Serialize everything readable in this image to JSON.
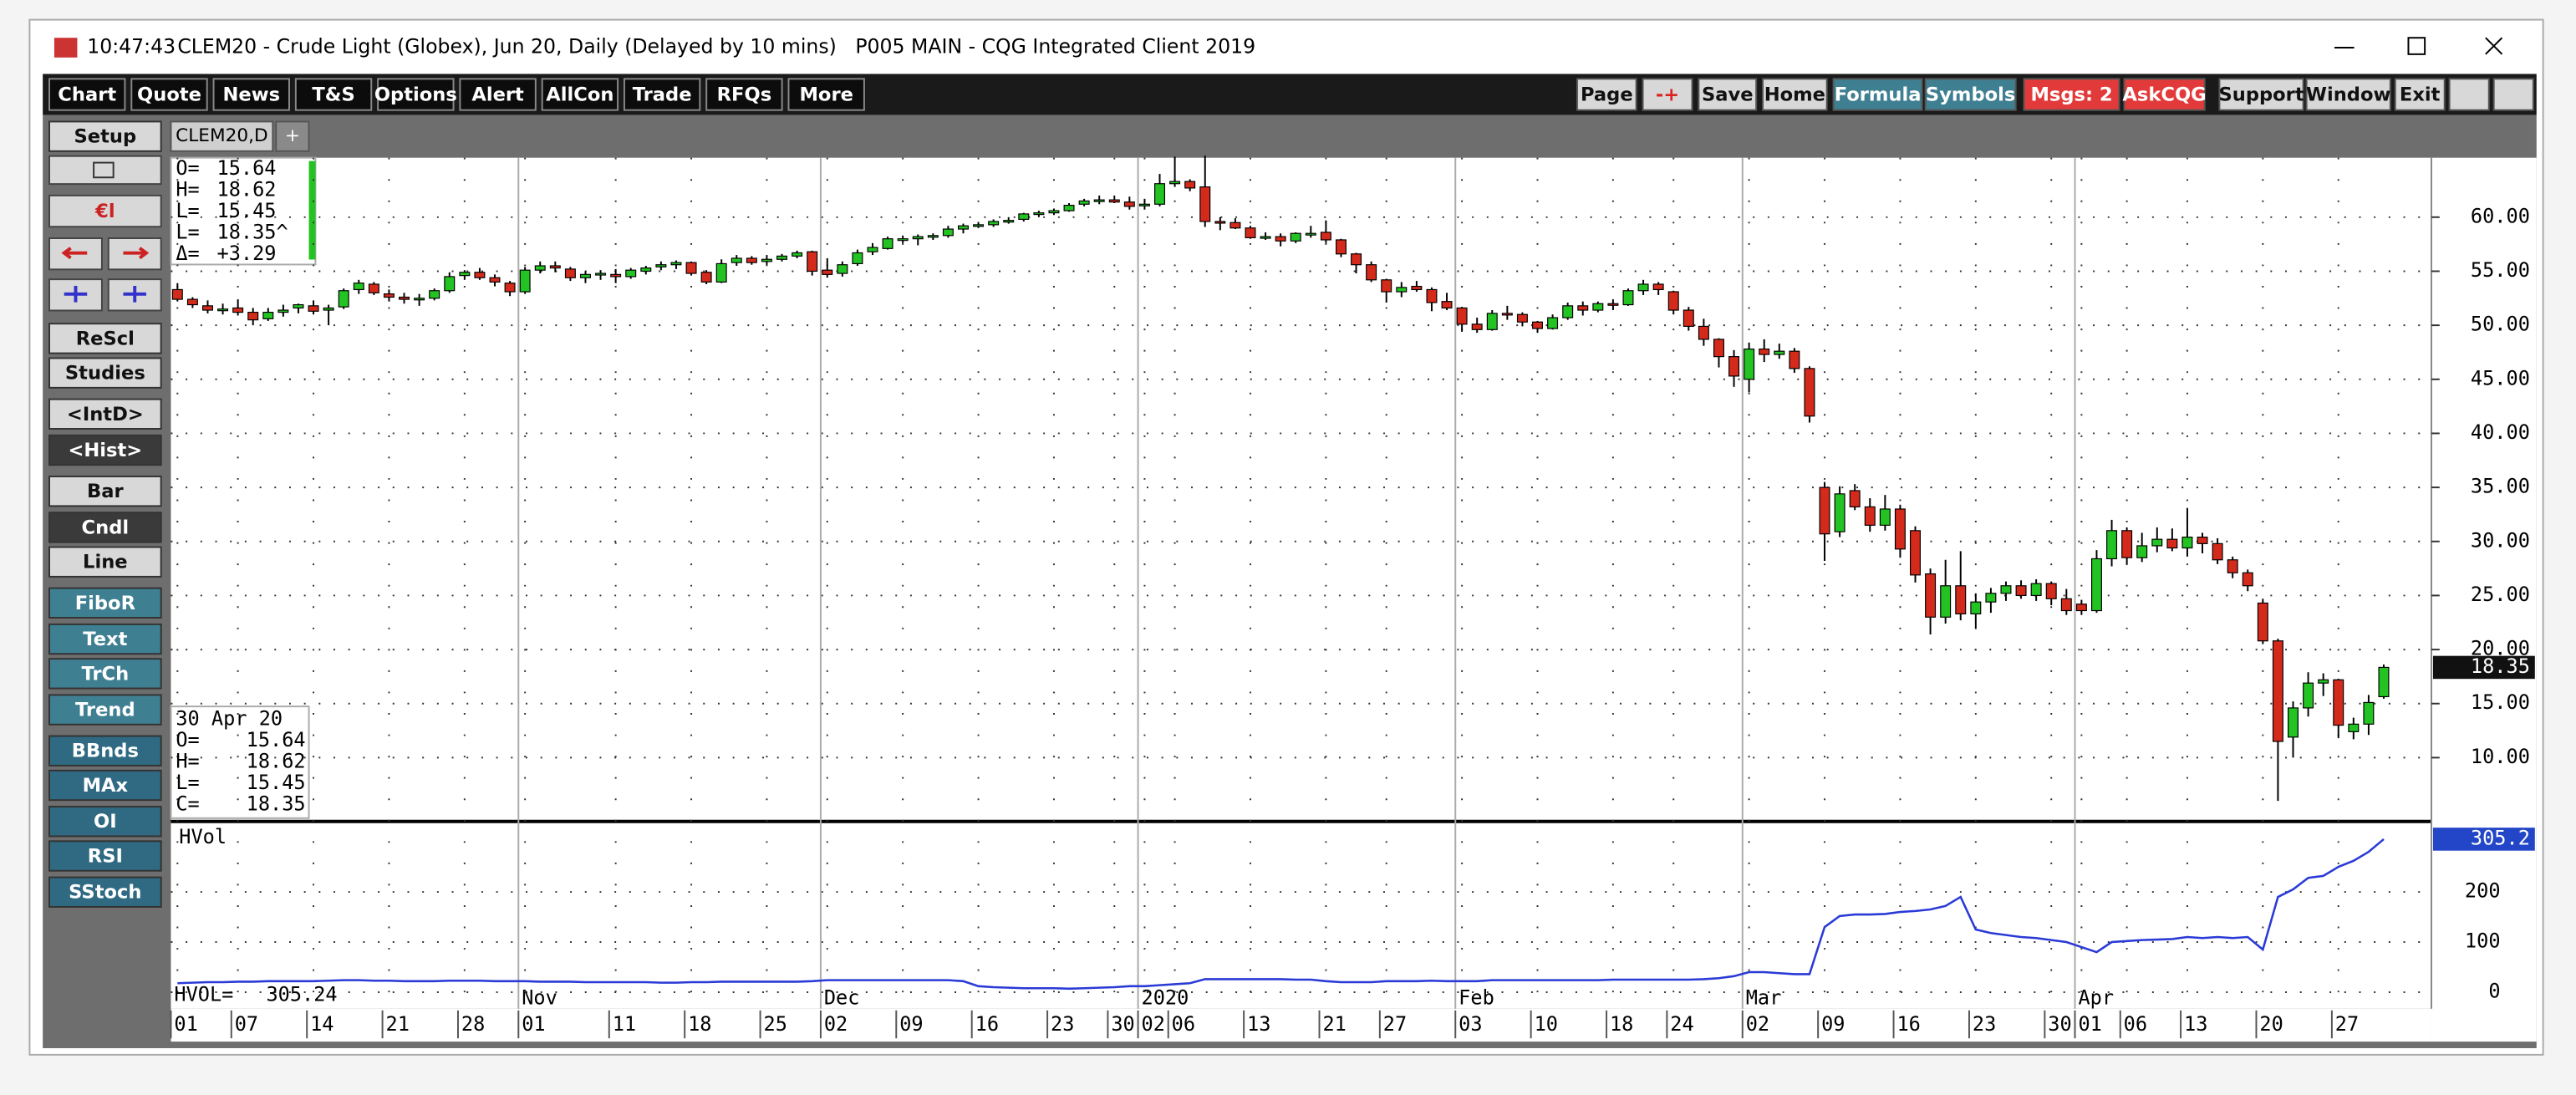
{
  "window": {
    "time": "10:47:43",
    "title": "CLEM20 - Crude Light (Globex), Jun 20, Daily (Delayed by 10 mins)   P005 MAIN - CQG Integrated Client 2019"
  },
  "toolbar_left": [
    "Chart",
    "Quote",
    "News",
    "T&S",
    "Options",
    "Alert",
    "AllCon",
    "Trade",
    "RFQs",
    "More"
  ],
  "toolbar_right": [
    "Page",
    "-+",
    "Save",
    "Home",
    "Formula",
    "Symbols",
    "Msgs: 2",
    "AskCQG",
    "Support",
    "Window",
    "Exit"
  ],
  "sidebar": [
    "Setup",
    "ReScl",
    "Studies",
    "<IntD>",
    "<Hist>",
    "Bar",
    "Cndl",
    "Line",
    "FiboR",
    "Text",
    "TrCh",
    "Trend",
    "BBnds",
    "MAx",
    "OI",
    "RSI",
    "SStoch"
  ],
  "tabs": [
    "CLEM20,D",
    "+"
  ],
  "chart_data": {
    "type": "candlestick",
    "up_color": "#22c322",
    "down_color": "#d42a1c",
    "grid": true,
    "categories": [
      "01",
      null,
      null,
      null,
      "07",
      null,
      null,
      null,
      null,
      "14",
      null,
      null,
      null,
      null,
      "21",
      null,
      null,
      null,
      null,
      "28",
      null,
      null,
      null,
      "01",
      null,
      null,
      null,
      null,
      null,
      "11",
      null,
      null,
      null,
      null,
      "18",
      null,
      null,
      null,
      null,
      "25",
      null,
      null,
      null,
      "02",
      null,
      null,
      null,
      null,
      "09",
      null,
      null,
      null,
      null,
      "16",
      null,
      null,
      null,
      null,
      "23",
      null,
      null,
      null,
      "30",
      null,
      "02",
      null,
      "06",
      null,
      null,
      null,
      null,
      "13",
      null,
      null,
      null,
      null,
      "21",
      null,
      null,
      null,
      "27",
      null,
      null,
      null,
      null,
      "03",
      null,
      null,
      null,
      null,
      "10",
      null,
      null,
      null,
      null,
      "18",
      null,
      null,
      null,
      "24",
      null,
      null,
      null,
      null,
      "02",
      null,
      null,
      null,
      null,
      "09",
      null,
      null,
      null,
      null,
      "16",
      null,
      null,
      null,
      null,
      "23",
      null,
      null,
      null,
      null,
      "30",
      null,
      "01",
      null,
      null,
      "06",
      null,
      null,
      null,
      "13",
      null,
      null,
      null,
      null,
      "20",
      null,
      null,
      null,
      null,
      "27",
      null,
      null,
      null
    ],
    "months": [
      null,
      null,
      null,
      null,
      null,
      null,
      null,
      null,
      null,
      null,
      null,
      null,
      null,
      null,
      null,
      null,
      null,
      null,
      null,
      null,
      null,
      null,
      null,
      "Nov",
      null,
      null,
      null,
      null,
      null,
      null,
      null,
      null,
      null,
      null,
      null,
      null,
      null,
      null,
      null,
      null,
      null,
      null,
      null,
      "Dec",
      null,
      null,
      null,
      null,
      null,
      null,
      null,
      null,
      null,
      null,
      null,
      null,
      null,
      null,
      null,
      null,
      null,
      null,
      null,
      null,
      "2020",
      null,
      null,
      null,
      null,
      null,
      null,
      null,
      null,
      null,
      null,
      null,
      null,
      null,
      null,
      null,
      null,
      null,
      null,
      null,
      null,
      "Feb",
      null,
      null,
      null,
      null,
      null,
      null,
      null,
      null,
      null,
      null,
      null,
      null,
      null,
      null,
      null,
      null,
      null,
      null,
      "Mar",
      null,
      null,
      null,
      null,
      null,
      null,
      null,
      null,
      null,
      null,
      null,
      null,
      null,
      null,
      null,
      null,
      null,
      null,
      null,
      null,
      null,
      "Apr",
      null,
      null,
      null,
      null,
      null,
      null,
      null,
      null,
      null,
      null,
      null,
      null,
      null,
      null,
      null,
      null,
      null,
      null,
      null,
      null
    ],
    "ohlc": [
      [
        53.3,
        53.9,
        52.2,
        52.4
      ],
      [
        52.4,
        52.6,
        51.6,
        51.9
      ],
      [
        51.8,
        52.3,
        51.1,
        51.4
      ],
      [
        51.5,
        52.0,
        51.0,
        51.5
      ],
      [
        51.6,
        52.4,
        50.9,
        51.2
      ],
      [
        51.2,
        51.6,
        50.0,
        50.5
      ],
      [
        50.6,
        51.6,
        50.4,
        51.2
      ],
      [
        51.2,
        51.9,
        50.8,
        51.4
      ],
      [
        51.6,
        52.0,
        51.1,
        51.9
      ],
      [
        51.8,
        52.3,
        51.0,
        51.3
      ],
      [
        51.4,
        51.9,
        50.0,
        51.6
      ],
      [
        51.7,
        53.4,
        51.5,
        53.2
      ],
      [
        53.3,
        54.2,
        52.9,
        53.9
      ],
      [
        53.8,
        54.0,
        52.8,
        53.0
      ],
      [
        52.9,
        53.3,
        52.2,
        52.6
      ],
      [
        52.6,
        53.0,
        52.0,
        52.4
      ],
      [
        52.5,
        52.9,
        51.8,
        52.5
      ],
      [
        52.5,
        53.4,
        52.3,
        53.2
      ],
      [
        53.2,
        54.9,
        53.0,
        54.5
      ],
      [
        54.6,
        55.1,
        54.2,
        54.9
      ],
      [
        54.9,
        55.3,
        54.2,
        54.4
      ],
      [
        54.4,
        54.7,
        53.6,
        54.0
      ],
      [
        53.9,
        54.1,
        52.7,
        53.1
      ],
      [
        53.1,
        55.4,
        52.9,
        55.1
      ],
      [
        55.1,
        55.9,
        54.8,
        55.5
      ],
      [
        55.5,
        55.9,
        54.9,
        55.3
      ],
      [
        55.2,
        55.4,
        54.1,
        54.4
      ],
      [
        54.4,
        55.0,
        53.9,
        54.7
      ],
      [
        54.8,
        55.1,
        54.2,
        54.8
      ],
      [
        54.7,
        55.2,
        53.9,
        54.5
      ],
      [
        54.5,
        55.3,
        54.3,
        55.1
      ],
      [
        55.0,
        55.5,
        54.7,
        55.3
      ],
      [
        55.4,
        55.9,
        55.1,
        55.6
      ],
      [
        55.6,
        56.0,
        55.2,
        55.8
      ],
      [
        55.8,
        55.9,
        54.6,
        54.8
      ],
      [
        54.9,
        55.1,
        53.8,
        54.0
      ],
      [
        54.0,
        56.1,
        53.9,
        55.7
      ],
      [
        55.8,
        56.5,
        55.5,
        56.2
      ],
      [
        56.2,
        56.4,
        55.6,
        55.8
      ],
      [
        55.9,
        56.5,
        55.6,
        56.1
      ],
      [
        56.1,
        56.6,
        55.9,
        56.4
      ],
      [
        56.4,
        56.9,
        56.2,
        56.7
      ],
      [
        56.8,
        56.9,
        54.6,
        55.0
      ],
      [
        55.1,
        56.2,
        54.4,
        54.7
      ],
      [
        54.8,
        55.9,
        54.5,
        55.6
      ],
      [
        55.7,
        57.0,
        55.5,
        56.7
      ],
      [
        56.8,
        57.6,
        56.5,
        57.2
      ],
      [
        57.1,
        58.2,
        57.0,
        58.0
      ],
      [
        58.0,
        58.3,
        57.6,
        58.0
      ],
      [
        58.0,
        58.4,
        57.4,
        58.2
      ],
      [
        58.2,
        58.5,
        57.9,
        58.3
      ],
      [
        58.3,
        59.2,
        58.1,
        58.9
      ],
      [
        58.9,
        59.4,
        58.5,
        59.2
      ],
      [
        59.2,
        59.5,
        59.0,
        59.3
      ],
      [
        59.3,
        59.8,
        59.1,
        59.6
      ],
      [
        59.6,
        60.0,
        59.4,
        59.7
      ],
      [
        59.8,
        60.4,
        59.6,
        60.3
      ],
      [
        60.3,
        60.6,
        60.0,
        60.4
      ],
      [
        60.4,
        60.8,
        60.2,
        60.6
      ],
      [
        60.6,
        61.3,
        60.5,
        61.1
      ],
      [
        61.2,
        61.7,
        61.0,
        61.5
      ],
      [
        61.5,
        62.0,
        61.2,
        61.6
      ],
      [
        61.6,
        62.0,
        61.3,
        61.4
      ],
      [
        61.4,
        61.9,
        60.7,
        61.0
      ],
      [
        61.1,
        61.7,
        60.7,
        61.2
      ],
      [
        61.2,
        64.0,
        61.0,
        63.1
      ],
      [
        63.1,
        65.6,
        62.8,
        63.3
      ],
      [
        63.3,
        63.5,
        62.4,
        62.7
      ],
      [
        62.8,
        65.7,
        59.1,
        59.6
      ],
      [
        59.6,
        60.0,
        58.8,
        59.5
      ],
      [
        59.5,
        59.9,
        58.9,
        59.0
      ],
      [
        59.0,
        59.2,
        58.0,
        58.1
      ],
      [
        58.2,
        58.6,
        57.9,
        58.2
      ],
      [
        58.2,
        58.5,
        57.3,
        57.8
      ],
      [
        57.8,
        58.6,
        57.6,
        58.5
      ],
      [
        58.5,
        59.2,
        58.1,
        58.5
      ],
      [
        58.6,
        59.7,
        57.6,
        57.9
      ],
      [
        57.9,
        58.0,
        56.3,
        56.6
      ],
      [
        56.6,
        56.7,
        54.8,
        55.6
      ],
      [
        55.6,
        55.9,
        54.0,
        54.2
      ],
      [
        54.2,
        54.3,
        52.1,
        53.1
      ],
      [
        53.1,
        54.0,
        52.6,
        53.5
      ],
      [
        53.6,
        54.1,
        53.1,
        53.3
      ],
      [
        53.3,
        53.5,
        51.3,
        52.1
      ],
      [
        52.2,
        53.0,
        51.4,
        51.6
      ],
      [
        51.6,
        51.7,
        49.4,
        50.1
      ],
      [
        50.1,
        50.7,
        49.3,
        49.6
      ],
      [
        49.6,
        51.4,
        49.5,
        51.1
      ],
      [
        51.1,
        51.8,
        50.5,
        51.0
      ],
      [
        51.0,
        51.2,
        49.9,
        50.3
      ],
      [
        50.3,
        50.4,
        49.3,
        49.7
      ],
      [
        49.7,
        51.0,
        49.6,
        50.7
      ],
      [
        50.7,
        52.1,
        50.5,
        51.8
      ],
      [
        51.8,
        52.2,
        50.9,
        51.4
      ],
      [
        51.4,
        52.2,
        51.2,
        52.0
      ],
      [
        52.0,
        52.4,
        51.4,
        51.9
      ],
      [
        51.9,
        53.4,
        51.8,
        53.2
      ],
      [
        53.2,
        54.2,
        52.8,
        53.8
      ],
      [
        53.8,
        54.0,
        52.8,
        53.3
      ],
      [
        53.1,
        53.2,
        51.0,
        51.4
      ],
      [
        51.4,
        51.7,
        49.5,
        49.9
      ],
      [
        49.9,
        50.6,
        48.1,
        48.7
      ],
      [
        48.7,
        48.8,
        46.1,
        47.1
      ],
      [
        47.1,
        47.7,
        44.3,
        45.3
      ],
      [
        45.0,
        48.4,
        43.8,
        47.8
      ],
      [
        47.8,
        48.7,
        46.6,
        47.3
      ],
      [
        47.3,
        48.3,
        46.9,
        47.6
      ],
      [
        47.6,
        47.9,
        45.6,
        46.0
      ],
      [
        46.0,
        46.2,
        41.0,
        41.6
      ],
      [
        35.0,
        35.5,
        28.2,
        30.7
      ],
      [
        30.9,
        35.1,
        30.4,
        34.4
      ],
      [
        34.7,
        35.3,
        32.9,
        33.2
      ],
      [
        33.2,
        34.0,
        30.9,
        31.5
      ],
      [
        31.5,
        34.3,
        31.0,
        33.0
      ],
      [
        33.0,
        33.4,
        28.5,
        29.3
      ],
      [
        31.0,
        31.4,
        26.2,
        26.9
      ],
      [
        27.0,
        27.5,
        21.4,
        23.0
      ],
      [
        23.0,
        28.3,
        22.4,
        25.9
      ],
      [
        25.9,
        29.1,
        22.7,
        23.3
      ],
      [
        23.3,
        25.2,
        22.0,
        24.4
      ],
      [
        24.4,
        25.7,
        23.4,
        25.2
      ],
      [
        25.2,
        26.3,
        24.5,
        25.9
      ],
      [
        25.9,
        26.4,
        24.7,
        25.0
      ],
      [
        25.0,
        26.5,
        24.5,
        26.1
      ],
      [
        26.1,
        26.3,
        24.1,
        24.7
      ],
      [
        24.7,
        25.6,
        23.2,
        23.6
      ],
      [
        24.2,
        24.6,
        23.2,
        23.6
      ],
      [
        23.6,
        29.2,
        23.4,
        28.4
      ],
      [
        28.4,
        32.0,
        27.7,
        31.0
      ],
      [
        31.0,
        31.3,
        27.9,
        28.5
      ],
      [
        28.5,
        30.8,
        28.1,
        29.6
      ],
      [
        29.6,
        31.3,
        29.0,
        30.2
      ],
      [
        30.2,
        31.2,
        29.1,
        29.4
      ],
      [
        29.4,
        33.1,
        28.6,
        30.4
      ],
      [
        30.4,
        30.8,
        28.9,
        29.8
      ],
      [
        29.8,
        30.3,
        27.9,
        28.3
      ],
      [
        28.3,
        28.6,
        26.6,
        27.1
      ],
      [
        27.1,
        27.4,
        25.4,
        25.9
      ],
      [
        24.3,
        24.7,
        20.5,
        20.8
      ],
      [
        20.8,
        21.0,
        6.0,
        11.5
      ],
      [
        11.9,
        15.2,
        10.0,
        14.6
      ],
      [
        14.6,
        17.9,
        13.8,
        16.9
      ],
      [
        16.9,
        17.8,
        15.7,
        17.2
      ],
      [
        17.2,
        17.3,
        11.8,
        13.0
      ],
      [
        12.4,
        13.7,
        11.7,
        13.1
      ],
      [
        13.1,
        15.8,
        12.1,
        15.1
      ],
      [
        15.64,
        18.62,
        15.45,
        18.35
      ]
    ],
    "ylim": [
      4.4,
      65.5
    ],
    "yticks": [
      {
        "value": 10,
        "label": "10.00"
      },
      {
        "value": 15,
        "label": "15.00"
      },
      {
        "value": 20,
        "label": "20.00"
      },
      {
        "value": 25,
        "label": "25.00"
      },
      {
        "value": 30,
        "label": "30.00"
      },
      {
        "value": 35,
        "label": "35.00"
      },
      {
        "value": 40,
        "label": "40.00"
      },
      {
        "value": 45,
        "label": "45.00"
      },
      {
        "value": 50,
        "label": "50.00"
      },
      {
        "value": 55,
        "label": "55.00"
      },
      {
        "value": 60,
        "label": "60.00"
      }
    ],
    "readout_top": {
      "labels": [
        "O=",
        "H=",
        "L=",
        "L=",
        "Δ="
      ],
      "last": "18.35^",
      "change": "+3.29"
    },
    "readout_bottom": {
      "date": "30 Apr 20",
      "labels": [
        "O=",
        "H=",
        "L=",
        "C="
      ]
    },
    "hvol": {
      "type": "line",
      "name": "HVol",
      "readout_label": "HVOL=",
      "color": "#2a3ad6",
      "last_label": "305.2",
      "ylim": [
        -33,
        334
      ],
      "yticks": [
        0,
        100,
        200
      ],
      "values": [
        18,
        19,
        20,
        20,
        21,
        21,
        22,
        22,
        22,
        22,
        23,
        24,
        24,
        23,
        23,
        22,
        22,
        22,
        23,
        23,
        23,
        22,
        22,
        22,
        21,
        21,
        21,
        20,
        20,
        20,
        20,
        20,
        19,
        19,
        20,
        20,
        21,
        21,
        21,
        21,
        21,
        21,
        22,
        24,
        24,
        24,
        24,
        24,
        24,
        24,
        24,
        24,
        22,
        12,
        10,
        9,
        8,
        8,
        8,
        7,
        8,
        9,
        10,
        12,
        12,
        14,
        16,
        18,
        26,
        26,
        26,
        26,
        26,
        26,
        25,
        25,
        22,
        20,
        20,
        20,
        22,
        22,
        22,
        23,
        22,
        22,
        22,
        24,
        24,
        24,
        24,
        24,
        24,
        24,
        24,
        25,
        25,
        25,
        25,
        25,
        25,
        26,
        28,
        32,
        40,
        40,
        38,
        36,
        36,
        130,
        152,
        155,
        155,
        156,
        160,
        162,
        165,
        172,
        190,
        125,
        118,
        114,
        110,
        108,
        104,
        100,
        90,
        80,
        100,
        102,
        104,
        105,
        106,
        110,
        108,
        110,
        108,
        110,
        85,
        190,
        205,
        228,
        232,
        250,
        262,
        280,
        305.24
      ]
    }
  }
}
